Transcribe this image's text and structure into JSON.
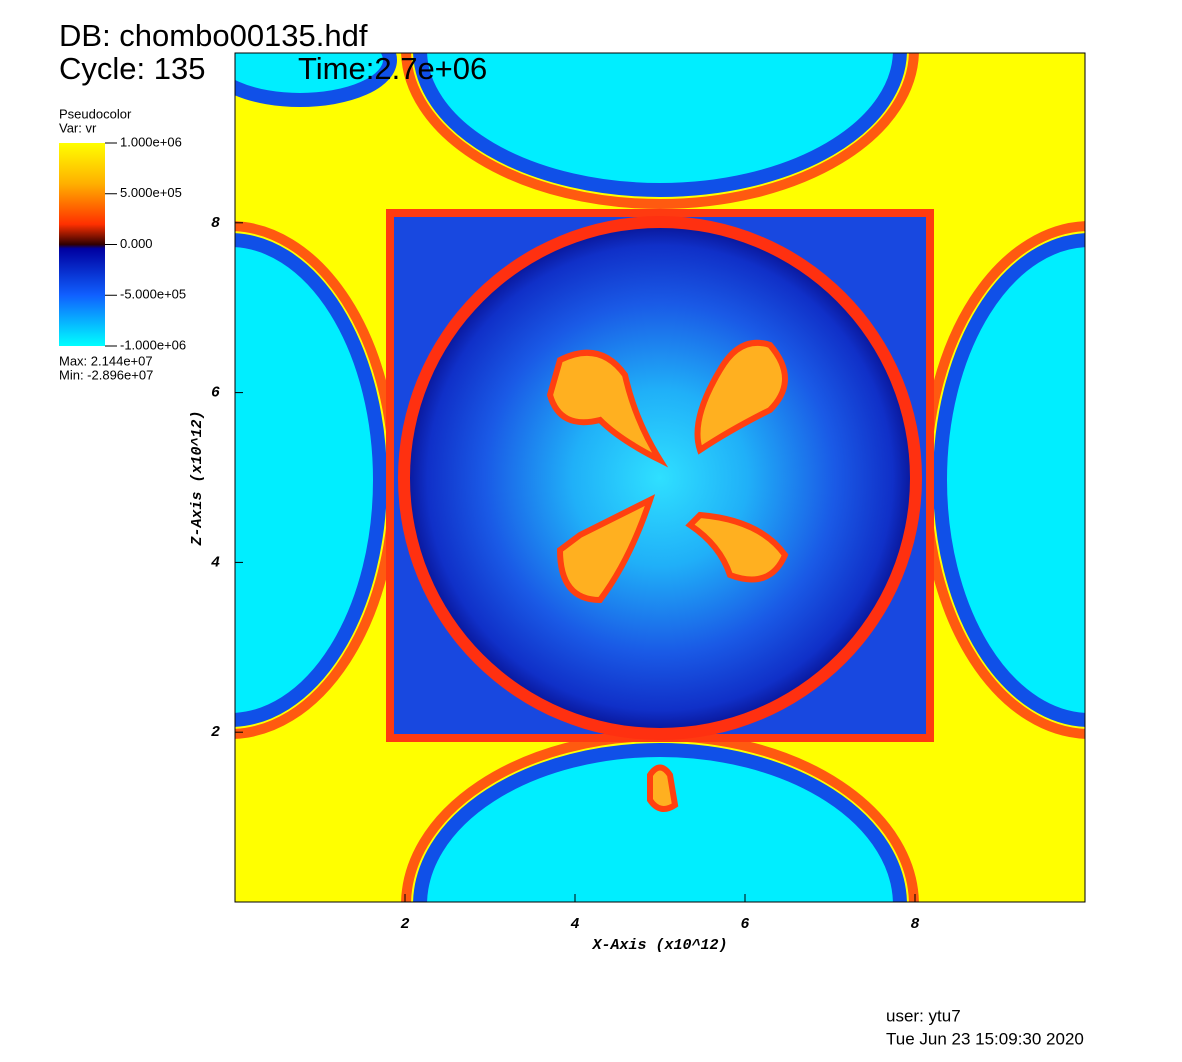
{
  "chart_data": {
    "type": "pseudocolor",
    "title": "DB: chombo00135.hdf",
    "cycle": "Cycle: 135",
    "time": "Time:2.7e+06",
    "legend_title": "Pseudocolor",
    "legend_var": "Var: vr",
    "legend_max": "Max:  2.144e+07",
    "legend_min": "Min: -2.896e+07",
    "x_label": "X-Axis (x10^12)",
    "y_label": "Z-Axis (x10^12)",
    "user": "user: ytu7",
    "date": "Tue Jun 23 15:09:30 2020",
    "xlim": [
      0,
      10
    ],
    "xticks": [
      2,
      4,
      6,
      8
    ],
    "ylim": [
      0,
      10
    ],
    "yticks": [
      2,
      4,
      6,
      8
    ],
    "clim": [
      -1000000,
      1000000
    ],
    "cticks": [
      {
        "value": 1000000,
        "label": "1.000e+06"
      },
      {
        "value": 500000,
        "label": "5.000e+05"
      },
      {
        "value": 0,
        "label": "0.000"
      },
      {
        "value": -500000,
        "label": "-5.000e+05"
      },
      {
        "value": -1000000,
        "label": "-1.000e+06"
      }
    ]
  }
}
